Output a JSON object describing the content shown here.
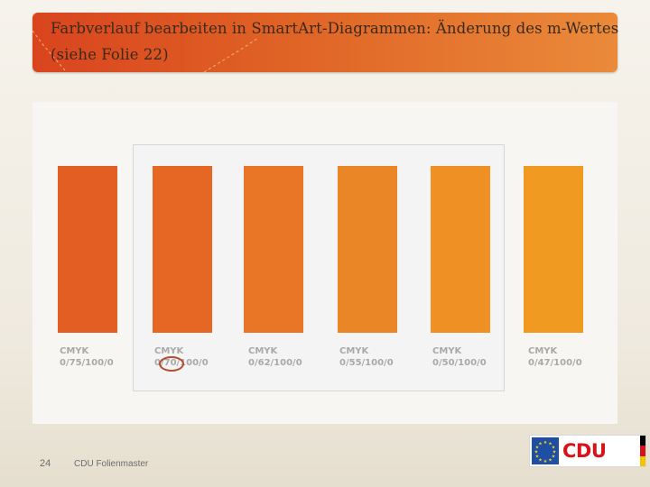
{
  "slide": {
    "title": "Farbverlauf bearbeiten in SmartArt-Diagrammen: Änderung des m-Wertes (siehe Folie 22)",
    "page_number": "24",
    "footer_text": "CDU Folienmaster"
  },
  "swatches": [
    {
      "model": "CMYK",
      "values": "0/75/100/0",
      "color": "#e35e22"
    },
    {
      "model": "CMYK",
      "values": "0/70/100/0",
      "color": "#e66724"
    },
    {
      "model": "CMYK",
      "values": "0/62/100/0",
      "color": "#e97626"
    },
    {
      "model": "CMYK",
      "values": "0/55/100/0",
      "color": "#eb8626"
    },
    {
      "model": "CMYK",
      "values": "0/50/100/0",
      "color": "#ee9024"
    },
    {
      "model": "CMYK",
      "values": "0/47/100/0",
      "color": "#f09a22"
    }
  ],
  "logo": {
    "text": "CDU",
    "flag_icon": "eu-flag-icon",
    "brand_color": "#d8121a"
  },
  "colors": {
    "title_bar_start": "#d9441e",
    "title_bar_end": "#ea8a3a",
    "marker": "#b84a2e"
  }
}
